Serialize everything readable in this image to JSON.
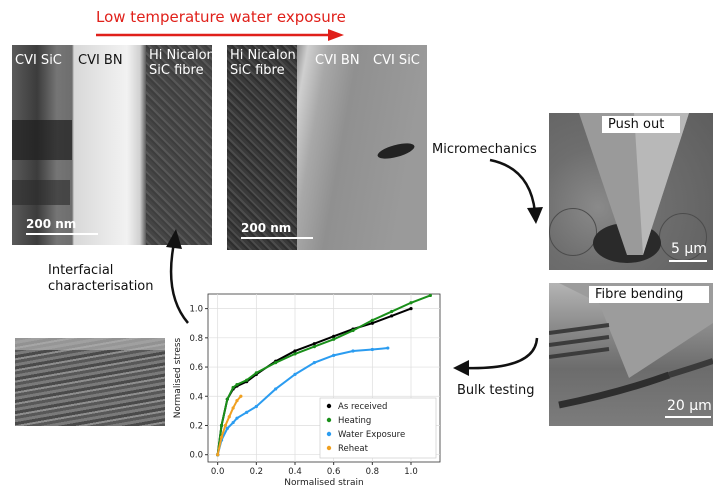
{
  "header": {
    "title": "Low temperature water exposure",
    "arrow_color": "#e0201a"
  },
  "tem_left": {
    "label_cvi": "CVI SiC",
    "label_bn": "CVI BN",
    "label_fibre_1": "Hi Nicalon",
    "label_fibre_2": "SiC fibre",
    "scale": "200 nm"
  },
  "tem_right": {
    "label_fibre_1": "Hi Nicalon",
    "label_fibre_2": "SiC fibre",
    "label_bn": "CVI BN",
    "label_cvi": "CVI SiC",
    "scale": "200 nm"
  },
  "arrows": {
    "micromechanics": "Micromechanics",
    "interfacial_1": "Interfacial",
    "interfacial_2": "characterisation",
    "bulk": "Bulk testing"
  },
  "sem_top": {
    "title": "Push out",
    "scale": "5 μm"
  },
  "sem_bottom": {
    "title": "Fibre bending",
    "scale": "20 μm"
  },
  "chart_data": {
    "type": "scatter",
    "xlabel": "Normalised strain",
    "ylabel": "Normalised stress",
    "xlim": [
      -0.05,
      1.15
    ],
    "ylim": [
      -0.05,
      1.1
    ],
    "xticks": [
      "0.0",
      "0.2",
      "0.4",
      "0.6",
      "0.8",
      "1.0"
    ],
    "yticks": [
      "0.0",
      "0.2",
      "0.4",
      "0.6",
      "0.8",
      "1.0"
    ],
    "grid": true,
    "legend_position": "bottom-right",
    "series": [
      {
        "name": "As received",
        "color": "#000000",
        "x": [
          0.0,
          0.02,
          0.05,
          0.08,
          0.1,
          0.15,
          0.2,
          0.3,
          0.4,
          0.5,
          0.6,
          0.7,
          0.8,
          0.9,
          1.0
        ],
        "y": [
          0.0,
          0.2,
          0.38,
          0.45,
          0.47,
          0.5,
          0.55,
          0.64,
          0.71,
          0.76,
          0.81,
          0.86,
          0.9,
          0.95,
          1.0
        ]
      },
      {
        "name": "Heating",
        "color": "#1a8f1a",
        "x": [
          0.0,
          0.02,
          0.05,
          0.08,
          0.1,
          0.15,
          0.2,
          0.3,
          0.4,
          0.5,
          0.6,
          0.7,
          0.8,
          0.9,
          1.0,
          1.1
        ],
        "y": [
          0.0,
          0.2,
          0.38,
          0.46,
          0.48,
          0.51,
          0.56,
          0.63,
          0.69,
          0.74,
          0.79,
          0.85,
          0.92,
          0.98,
          1.04,
          1.09
        ]
      },
      {
        "name": "Water Exposure",
        "color": "#2b9cf0",
        "x": [
          0.0,
          0.02,
          0.05,
          0.08,
          0.1,
          0.15,
          0.2,
          0.3,
          0.4,
          0.5,
          0.6,
          0.7,
          0.8,
          0.88
        ],
        "y": [
          0.0,
          0.1,
          0.18,
          0.22,
          0.25,
          0.29,
          0.33,
          0.45,
          0.55,
          0.63,
          0.68,
          0.71,
          0.72,
          0.73
        ]
      },
      {
        "name": "Reheat",
        "color": "#f0a020",
        "x": [
          0.0,
          0.02,
          0.04,
          0.06,
          0.08,
          0.1,
          0.12
        ],
        "y": [
          0.0,
          0.12,
          0.2,
          0.26,
          0.32,
          0.37,
          0.4
        ]
      }
    ]
  }
}
